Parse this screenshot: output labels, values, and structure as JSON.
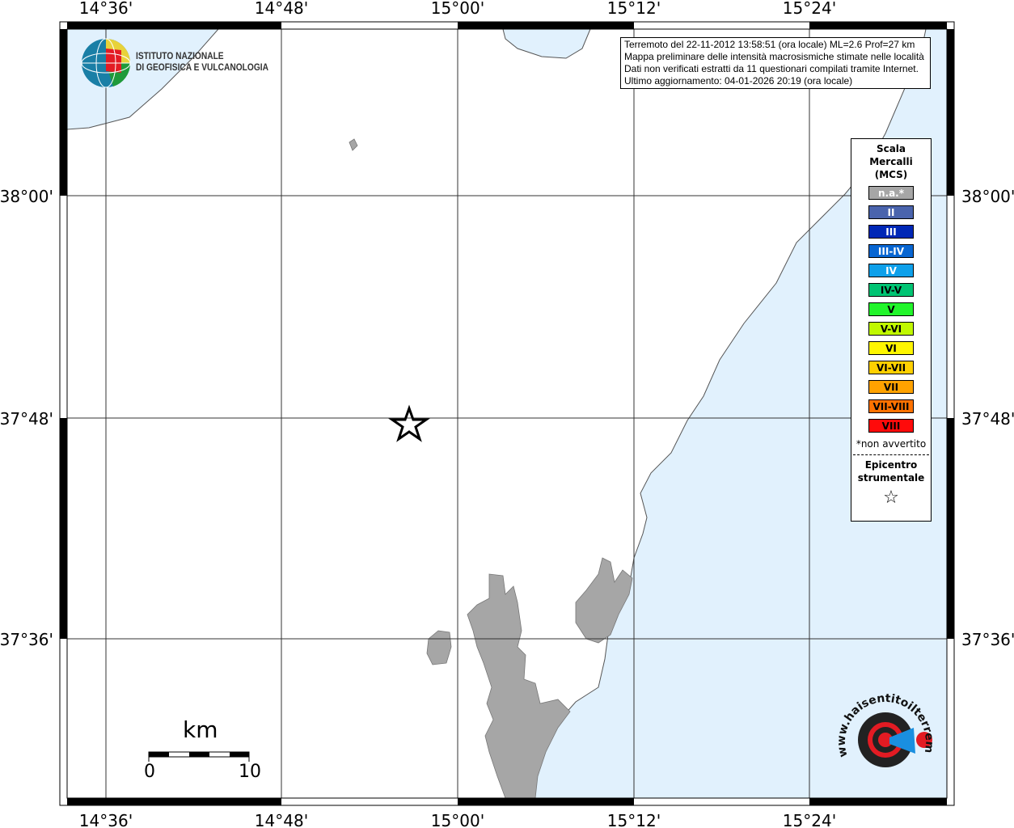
{
  "map": {
    "lon_labels": [
      "14°36'",
      "14°48'",
      "15°00'",
      "15°12'",
      "15°24'"
    ],
    "lat_labels": [
      "38°00'",
      "37°48'",
      "37°36'"
    ],
    "colors": {
      "sea": "#e1f1fd",
      "land_urban": "#a6a6a6"
    }
  },
  "info": {
    "lines": [
      "Terremoto del 22-11-2012 13:58:51 (ora locale) ML=2.6 Prof=27 km",
      "Mappa preliminare delle intensità macrosismiche stimate nelle località",
      "Dati non verificati estratti da 11 questionari compilati tramite Internet.",
      "Ultimo aggiornamento: 04-01-2026 20:19 (ora locale)"
    ]
  },
  "legend": {
    "title_lines": [
      "Scala",
      "Mercalli",
      "(MCS)"
    ],
    "items": [
      {
        "label": "n.a.*",
        "color": "#a6a6a6",
        "text": "#ffffff"
      },
      {
        "label": "II",
        "color": "#4a64ad",
        "text": "#ffffff"
      },
      {
        "label": "III",
        "color": "#0027b6",
        "text": "#ffffff"
      },
      {
        "label": "III-IV",
        "color": "#0866d2",
        "text": "#ffffff"
      },
      {
        "label": "IV",
        "color": "#0ea0ea",
        "text": "#ffffff"
      },
      {
        "label": "IV-V",
        "color": "#00c473",
        "text": "#000000"
      },
      {
        "label": "V",
        "color": "#22f52b",
        "text": "#000000"
      },
      {
        "label": "V-VI",
        "color": "#c0f800",
        "text": "#000000"
      },
      {
        "label": "VI",
        "color": "#fff600",
        "text": "#000000"
      },
      {
        "label": "VI-VII",
        "color": "#ffd000",
        "text": "#000000"
      },
      {
        "label": "VII",
        "color": "#ffa200",
        "text": "#000000"
      },
      {
        "label": "VII-VIII",
        "color": "#ff7200",
        "text": "#000000"
      },
      {
        "label": "VIII",
        "color": "#ff0a0a",
        "text": "#000000"
      }
    ],
    "note": "*non avvertito",
    "epicenter_lines": [
      "Epicentro",
      "strumentale"
    ],
    "epicenter_symbol": "☆"
  },
  "logos": {
    "ingv_lines": [
      "ISTITUTO NAZIONALE",
      "DI GEOFISICA E VULCANOLOGIA"
    ],
    "hsit": "www.haisentitoilterremoto.it"
  },
  "scale": {
    "unit": "km",
    "min": "0",
    "max": "10"
  }
}
